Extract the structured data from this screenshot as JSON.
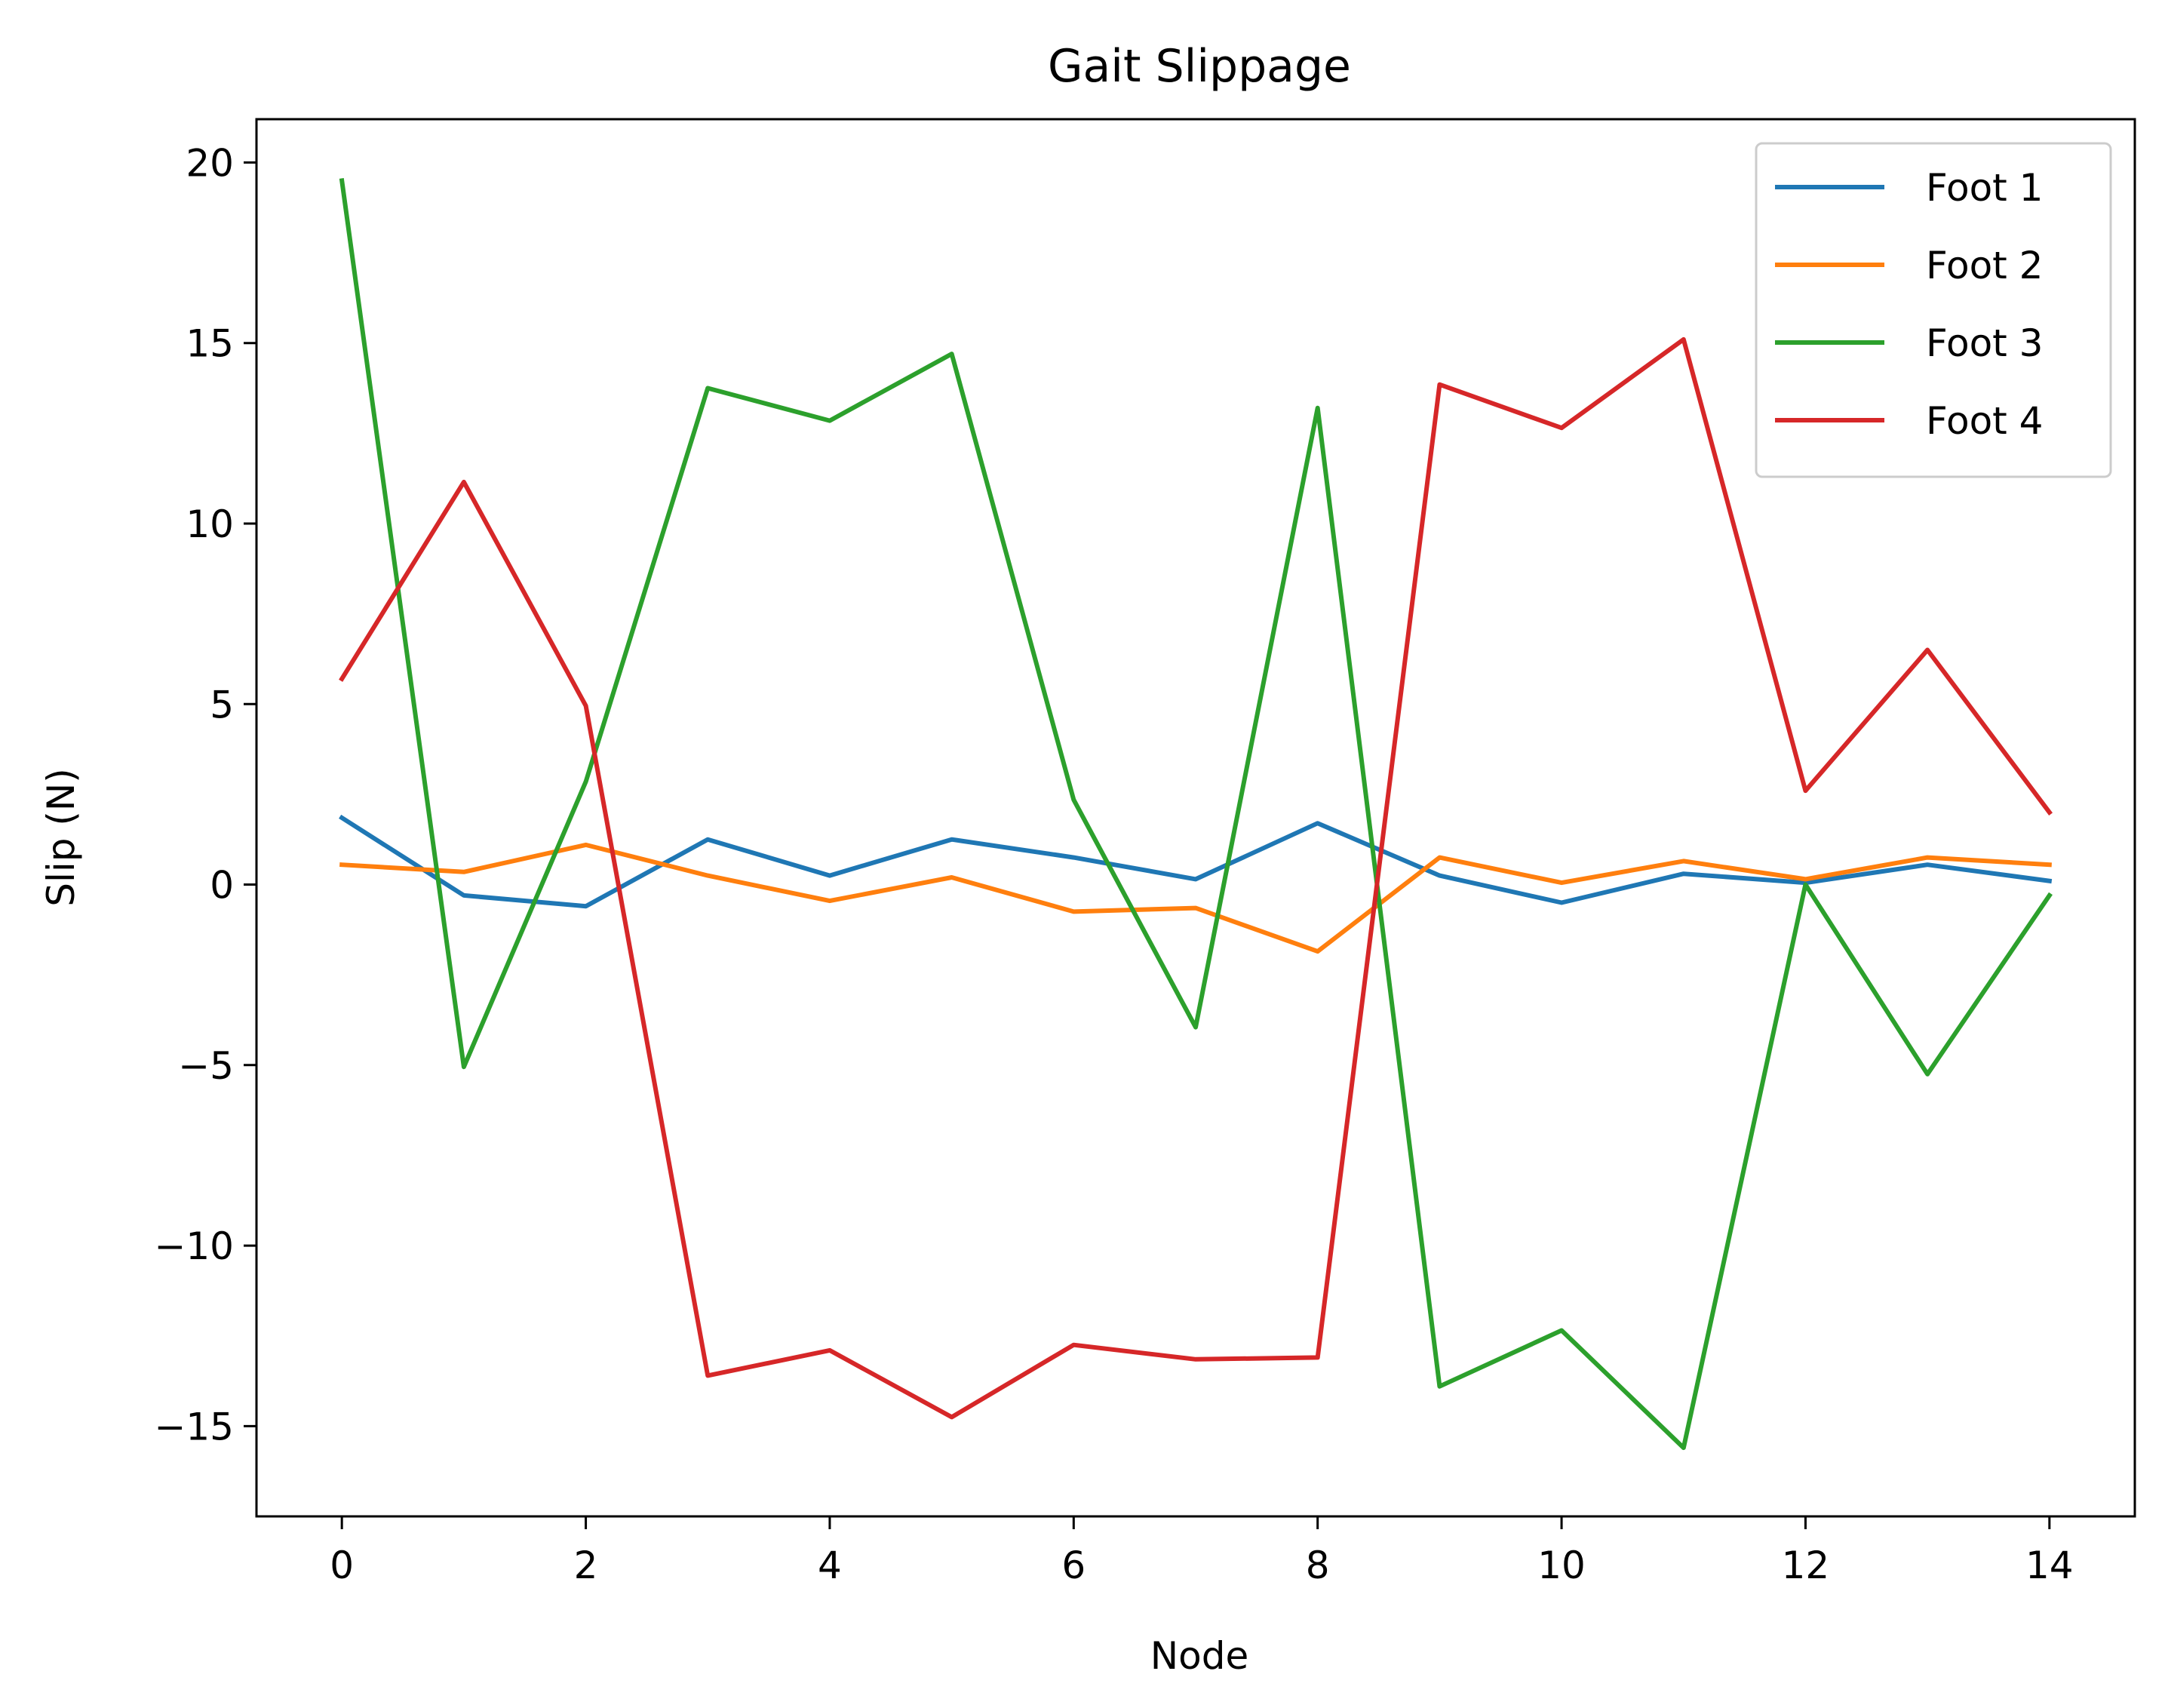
{
  "chart_data": {
    "type": "line",
    "title": "Gait Slippage",
    "xlabel": "Node",
    "ylabel": "Slip (N)",
    "x": [
      0,
      1,
      2,
      3,
      4,
      5,
      6,
      7,
      8,
      9,
      10,
      11,
      12,
      13,
      14
    ],
    "xlim": [
      -0.7,
      14.7
    ],
    "ylim": [
      -17.5,
      21.2
    ],
    "xticks": [
      0,
      2,
      4,
      6,
      8,
      10,
      12,
      14
    ],
    "xtick_labels": [
      "0",
      "2",
      "4",
      "6",
      "8",
      "10",
      "12",
      "14"
    ],
    "yticks": [
      20,
      15,
      10,
      5,
      0,
      -5,
      -10,
      -15
    ],
    "ytick_labels": [
      "20",
      "15",
      "10",
      "5",
      "0",
      "−5",
      "−10",
      "−15"
    ],
    "grid": false,
    "legend_position": "top-right",
    "series": [
      {
        "name": "Foot 1",
        "color": "#1f77b4",
        "values": [
          1.85,
          -0.3,
          -0.6,
          1.25,
          0.25,
          1.25,
          0.75,
          0.15,
          1.7,
          0.25,
          -0.5,
          0.3,
          0.05,
          0.55,
          0.1
        ]
      },
      {
        "name": "Foot 2",
        "color": "#ff7f0e",
        "values": [
          0.55,
          0.35,
          1.1,
          0.25,
          -0.45,
          0.2,
          -0.75,
          -0.65,
          -1.85,
          0.75,
          0.05,
          0.65,
          0.15,
          0.75,
          0.55
        ]
      },
      {
        "name": "Foot 3",
        "color": "#2ca02c",
        "values": [
          19.5,
          -5.05,
          2.85,
          13.75,
          12.85,
          14.7,
          2.35,
          -3.95,
          13.2,
          -13.9,
          -12.35,
          -15.6,
          0.0,
          -5.25,
          -0.3
        ]
      },
      {
        "name": "Foot 4",
        "color": "#d62728",
        "values": [
          5.7,
          11.15,
          4.95,
          -13.6,
          -12.9,
          -14.75,
          -12.75,
          -13.15,
          -13.1,
          13.85,
          12.65,
          15.1,
          2.6,
          6.5,
          2.0
        ]
      }
    ]
  }
}
